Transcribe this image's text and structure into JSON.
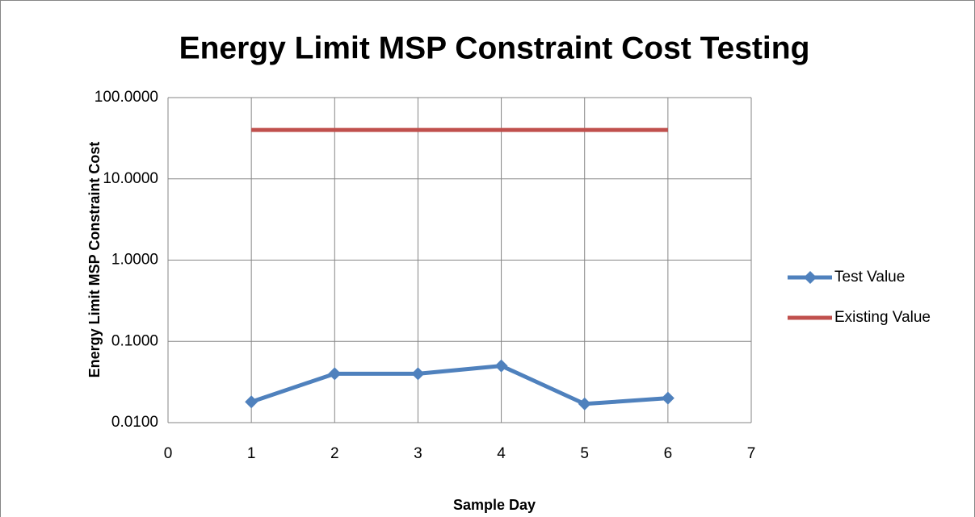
{
  "chart_data": {
    "type": "line",
    "title": "Energy Limit MSP Constraint Cost Testing",
    "x_label": "Sample Day",
    "y_label": "Energy Limit  MSP Constraint Cost",
    "series": [
      {
        "name": "Test Value",
        "color": "#4f81bd",
        "marker": "diamond",
        "x": [
          1,
          2,
          3,
          4,
          5,
          6
        ],
        "values": [
          0.018,
          0.04,
          0.04,
          0.05,
          0.017,
          0.02
        ]
      },
      {
        "name": "Existing Value",
        "color": "#c0504d",
        "x": [
          1,
          6
        ],
        "values": [
          40,
          40
        ]
      }
    ],
    "xlim": [
      0,
      7
    ],
    "xticks": [
      0,
      1,
      2,
      3,
      4,
      5,
      6,
      7
    ],
    "ylim": [
      0.01,
      100
    ],
    "log_y": true,
    "yticks": [
      {
        "value": 0.01,
        "label": "0.0100"
      },
      {
        "value": 0.1,
        "label": "0.1000"
      },
      {
        "value": 1,
        "label": "1.0000"
      },
      {
        "value": 10,
        "label": "10.0000"
      },
      {
        "value": 100,
        "label": "100.0000"
      }
    ],
    "grid": true,
    "legend": "right"
  }
}
